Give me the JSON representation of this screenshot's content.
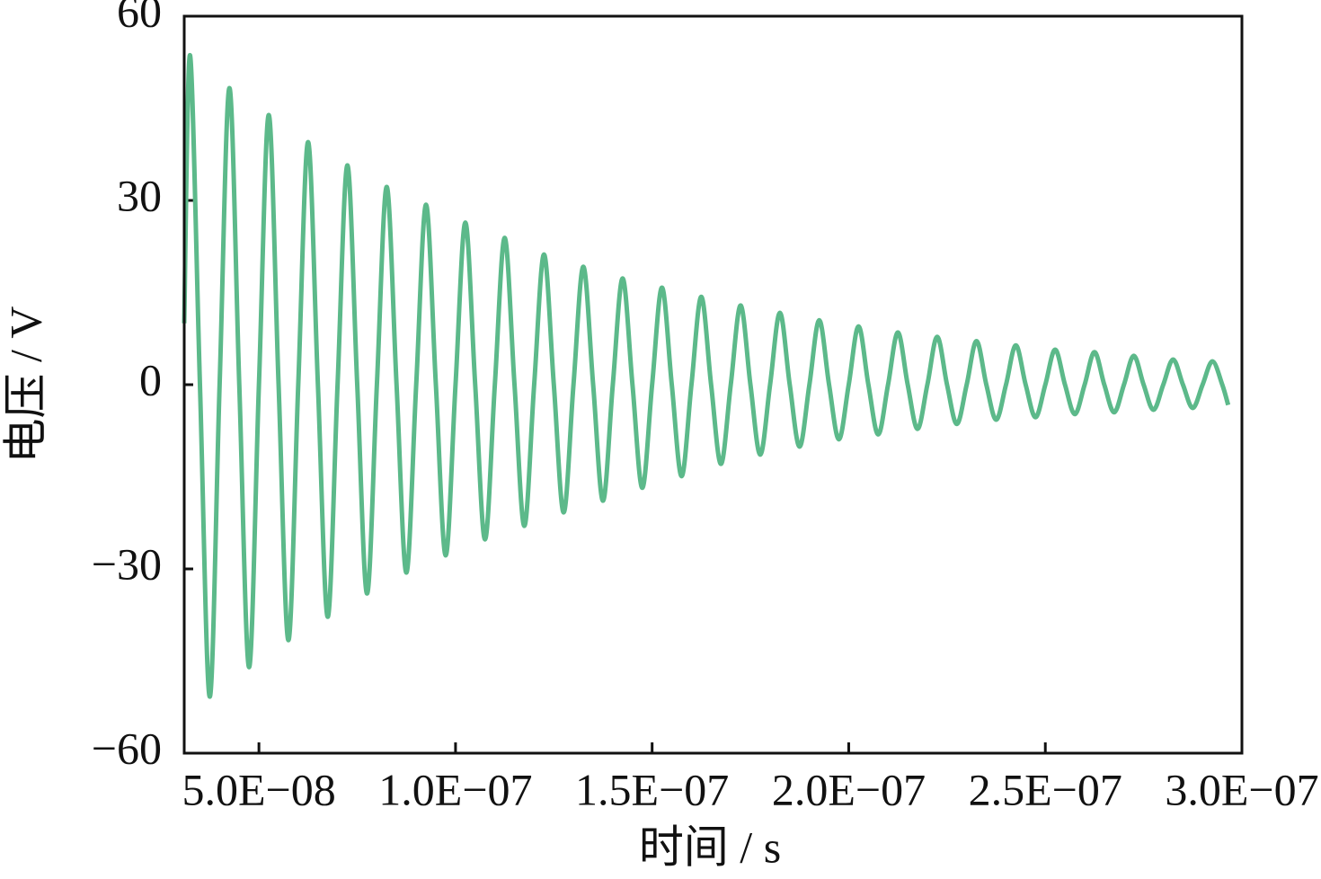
{
  "chart_data": {
    "type": "line",
    "x_label": "时间 / s",
    "y_label": "电压 / V",
    "color": "#5cb98a",
    "grid": false,
    "xlim": [
      3.1e-08,
      3e-07
    ],
    "ylim": [
      -60,
      60
    ],
    "xticks": [
      {
        "value": 5e-08,
        "label": "5.0E−08"
      },
      {
        "value": 1e-07,
        "label": "1.0E−07"
      },
      {
        "value": 1.5e-07,
        "label": "1.5E−07"
      },
      {
        "value": 2e-07,
        "label": "2.0E−07"
      },
      {
        "value": 2.5e-07,
        "label": "2.5E−07"
      },
      {
        "value": 3e-07,
        "label": "3.0E−07"
      }
    ],
    "yticks": [
      {
        "value": -60,
        "label": "−60"
      },
      {
        "value": -30,
        "label": "−30"
      },
      0,
      30,
      60
    ],
    "x": [
      3.1e-08,
      3.25e-08,
      3.5e-08,
      3.75e-08,
      4e-08,
      4.25e-08,
      4.5e-08,
      4.75e-08,
      5e-08,
      5.25e-08,
      5.5e-08,
      5.75e-08,
      6e-08,
      6.25e-08,
      6.5e-08,
      6.75e-08,
      7e-08,
      7.25e-08,
      7.5e-08,
      7.75e-08,
      8e-08,
      8.25e-08,
      8.5e-08,
      8.75e-08,
      9e-08,
      9.25e-08,
      9.5e-08,
      9.75e-08,
      1e-07,
      1.025e-07,
      1.05e-07,
      1.075e-07,
      1.1e-07,
      1.125e-07,
      1.15e-07,
      1.175e-07,
      1.2e-07,
      1.225e-07,
      1.25e-07,
      1.275e-07,
      1.3e-07,
      1.325e-07,
      1.35e-07,
      1.375e-07,
      1.4e-07,
      1.425e-07,
      1.45e-07,
      1.475e-07,
      1.5e-07,
      1.525e-07,
      1.55e-07,
      1.575e-07,
      1.6e-07,
      1.625e-07,
      1.65e-07,
      1.675e-07,
      1.7e-07,
      1.725e-07,
      1.75e-07,
      1.775e-07,
      1.8e-07,
      1.825e-07,
      1.85e-07,
      1.875e-07,
      1.9e-07,
      1.925e-07,
      1.95e-07,
      1.975e-07,
      2e-07,
      2.025e-07,
      2.05e-07,
      2.075e-07,
      2.1e-07,
      2.125e-07,
      2.15e-07,
      2.175e-07,
      2.2e-07,
      2.225e-07,
      2.25e-07,
      2.275e-07,
      2.3e-07,
      2.325e-07,
      2.35e-07,
      2.375e-07,
      2.4e-07,
      2.425e-07,
      2.45e-07,
      2.475e-07,
      2.5e-07,
      2.525e-07,
      2.55e-07,
      2.575e-07,
      2.6e-07,
      2.625e-07,
      2.65e-07,
      2.675e-07,
      2.7e-07,
      2.725e-07,
      2.75e-07,
      2.775e-07,
      2.8e-07,
      2.825e-07,
      2.85e-07,
      2.875e-07,
      2.9e-07,
      2.925e-07,
      2.95e-07,
      2.965e-07
    ],
    "values": [
      10,
      53.6,
      0,
      -50.8,
      0,
      48.3,
      0,
      -46,
      0,
      43.9,
      0,
      -41.6,
      0,
      39.5,
      0,
      -37.8,
      0,
      35.7,
      0,
      -34,
      0,
      32.2,
      0,
      -30.6,
      0,
      29.3,
      0,
      -27.8,
      0,
      26.4,
      0,
      -25.2,
      0,
      23.9,
      0,
      -23,
      0,
      21.2,
      0,
      -20.8,
      0,
      19.2,
      0,
      -18.9,
      0,
      17.3,
      0,
      -16.8,
      0,
      15.8,
      0,
      -14.9,
      0,
      14.3,
      0,
      -12.9,
      0,
      12.9,
      0,
      -11.4,
      0,
      11.7,
      0,
      -10.1,
      0,
      10.5,
      0,
      -8.9,
      0,
      9.5,
      0,
      -8.1,
      0,
      8.5,
      0,
      -7.2,
      0,
      7.8,
      0,
      -6.4,
      0,
      7.1,
      0,
      -5.7,
      0,
      6.4,
      0,
      -5.3,
      0,
      5.7,
      0,
      -4.8,
      0,
      5.3,
      0,
      -4.5,
      0,
      4.7,
      0,
      -4.1,
      0,
      4.1,
      0,
      -3.8,
      0,
      3.8,
      0,
      -3.3
    ]
  }
}
